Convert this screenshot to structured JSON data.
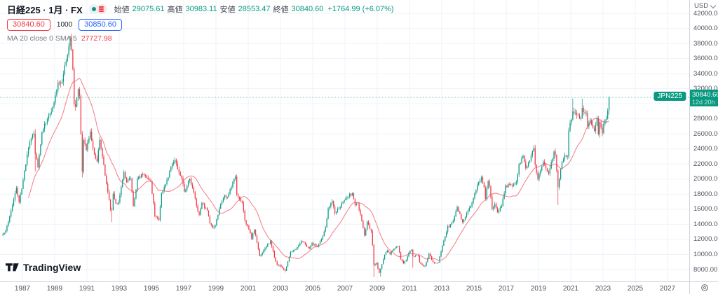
{
  "header": {
    "title": "日経225 · 1月 · FX",
    "status_icons": [
      "market-status-dot",
      "alert-menu"
    ],
    "ohlc": {
      "open_label": "始値",
      "open": "29075.61",
      "high_label": "高値",
      "high": "30983.11",
      "low_label": "安値",
      "low": "28553.47",
      "close_label": "終値",
      "close": "30840.60",
      "change": "+1764.99 (+6.07%)"
    }
  },
  "trade_panel": {
    "sell_price": "30840.60",
    "quantity": "1000",
    "buy_price": "30850.60"
  },
  "ma_legend": {
    "label": "MA 20 close 0 SMA 5",
    "value": "27727.98"
  },
  "price_axis": {
    "currency": "USD",
    "price_tag": {
      "price": "30840.60",
      "countdown": "12d 20h"
    }
  },
  "symbol_badge": "JPN225",
  "logo_text": "TradingView",
  "colors": {
    "up": "#089981",
    "down": "#F23645",
    "buy": "#2962FF",
    "sell": "#F23645",
    "ma_line": "#F23645",
    "grid": "#EEF3FA",
    "axis_border": "#D1D4DC",
    "axis_text": "#50535E",
    "current_price_line": "#089981"
  },
  "chart_data": {
    "type": "candlestick",
    "symbol": "JPN225 (日経225)",
    "timeframe": "1月 (monthly)",
    "legend": "MA 20 close 0 SMA 5",
    "ma_period": 20,
    "ma_last_value": 27727.98,
    "current_price": 30840.6,
    "last_candle": {
      "open": 29075.61,
      "high": 30983.11,
      "low": 28553.47,
      "close": 30840.6
    },
    "ylim": [
      6400,
      43800
    ],
    "price_gridlines": [
      8000,
      10000,
      12000,
      14000,
      16000,
      18000,
      20000,
      22000,
      24000,
      26000,
      28000,
      30000,
      32000,
      34000,
      36000,
      38000,
      40000,
      42000
    ],
    "year_gridlines": [
      1987,
      1989,
      1991,
      1993,
      1995,
      1997,
      1999,
      2001,
      2003,
      2005,
      2007,
      2009,
      2011,
      2013,
      2015,
      2017,
      2019,
      2021,
      2023,
      2025,
      2027
    ],
    "monthly_close_anchors": [
      [
        1985,
        10,
        12700
      ],
      [
        1985,
        12,
        13113
      ],
      [
        1986,
        4,
        15826
      ],
      [
        1986,
        8,
        18821
      ],
      [
        1986,
        10,
        16911
      ],
      [
        1986,
        12,
        18701
      ],
      [
        1987,
        4,
        23275
      ],
      [
        1987,
        6,
        24902
      ],
      [
        1987,
        9,
        26010
      ],
      [
        1987,
        10,
        23328,
        26646,
        21036
      ],
      [
        1987,
        12,
        21564
      ],
      [
        1988,
        3,
        26260
      ],
      [
        1988,
        7,
        27940
      ],
      [
        1988,
        11,
        29579
      ],
      [
        1988,
        12,
        30159
      ],
      [
        1989,
        3,
        32839
      ],
      [
        1989,
        6,
        32949
      ],
      [
        1989,
        9,
        35637
      ],
      [
        1989,
        12,
        38916,
        38957,
        null
      ],
      [
        1990,
        1,
        37189
      ],
      [
        1990,
        2,
        34592
      ],
      [
        1990,
        3,
        29980
      ],
      [
        1990,
        4,
        29585
      ],
      [
        1990,
        6,
        31940
      ],
      [
        1990,
        7,
        31035
      ],
      [
        1990,
        8,
        25978
      ],
      [
        1990,
        9,
        20984,
        null,
        20222
      ],
      [
        1990,
        10,
        25194
      ],
      [
        1990,
        12,
        23849
      ],
      [
        1991,
        3,
        26292
      ],
      [
        1991,
        6,
        23291
      ],
      [
        1991,
        8,
        22336
      ],
      [
        1991,
        10,
        25222
      ],
      [
        1991,
        12,
        22984
      ],
      [
        1992,
        3,
        19346
      ],
      [
        1992,
        6,
        15952
      ],
      [
        1992,
        7,
        15910,
        null,
        14309
      ],
      [
        1992,
        8,
        18061
      ],
      [
        1992,
        10,
        16767
      ],
      [
        1992,
        12,
        16925
      ],
      [
        1993,
        4,
        20919
      ],
      [
        1993,
        6,
        19590
      ],
      [
        1993,
        9,
        20106
      ],
      [
        1993,
        11,
        16406
      ],
      [
        1993,
        12,
        17417
      ],
      [
        1994,
        2,
        19997
      ],
      [
        1994,
        6,
        20644
      ],
      [
        1994,
        10,
        19990
      ],
      [
        1994,
        12,
        19723
      ],
      [
        1995,
        3,
        15140
      ],
      [
        1995,
        6,
        14517
      ],
      [
        1995,
        8,
        18117
      ],
      [
        1995,
        12,
        19868
      ],
      [
        1996,
        4,
        22041
      ],
      [
        1996,
        6,
        22531
      ],
      [
        1996,
        10,
        20467
      ],
      [
        1996,
        12,
        19361
      ],
      [
        1997,
        1,
        18330
      ],
      [
        1997,
        5,
        20069
      ],
      [
        1997,
        8,
        18229
      ],
      [
        1997,
        10,
        16459
      ],
      [
        1997,
        12,
        15259
      ],
      [
        1998,
        2,
        16831
      ],
      [
        1998,
        6,
        15830
      ],
      [
        1998,
        8,
        14108
      ],
      [
        1998,
        10,
        13565
      ],
      [
        1998,
        12,
        13842
      ],
      [
        1999,
        4,
        16702
      ],
      [
        1999,
        7,
        17861
      ],
      [
        1999,
        9,
        17606
      ],
      [
        1999,
        12,
        18934
      ],
      [
        2000,
        3,
        20337
      ],
      [
        2000,
        4,
        17974
      ],
      [
        2000,
        6,
        17411
      ],
      [
        2000,
        8,
        16861
      ],
      [
        2000,
        10,
        14540
      ],
      [
        2000,
        12,
        13786
      ],
      [
        2001,
        3,
        12100
      ],
      [
        2001,
        5,
        13262
      ],
      [
        2001,
        8,
        10714
      ],
      [
        2001,
        9,
        9775
      ],
      [
        2001,
        12,
        10543
      ],
      [
        2002,
        5,
        11764
      ],
      [
        2002,
        8,
        9619
      ],
      [
        2002,
        10,
        8640
      ],
      [
        2002,
        12,
        8579
      ],
      [
        2003,
        3,
        7973
      ],
      [
        2003,
        4,
        7831,
        null,
        7603
      ],
      [
        2003,
        6,
        9083
      ],
      [
        2003,
        8,
        10343
      ],
      [
        2003,
        10,
        10559
      ],
      [
        2003,
        12,
        10677
      ],
      [
        2004,
        4,
        11762
      ],
      [
        2004,
        7,
        11326
      ],
      [
        2004,
        10,
        10772
      ],
      [
        2004,
        12,
        11489
      ],
      [
        2005,
        4,
        11009
      ],
      [
        2005,
        8,
        12414
      ],
      [
        2005,
        10,
        13606
      ],
      [
        2005,
        12,
        16111
      ],
      [
        2006,
        3,
        17060
      ],
      [
        2006,
        5,
        15468
      ],
      [
        2006,
        8,
        16141
      ],
      [
        2006,
        12,
        17226
      ],
      [
        2007,
        2,
        17604
      ],
      [
        2007,
        6,
        18138
      ],
      [
        2007,
        8,
        16569
      ],
      [
        2007,
        10,
        16738
      ],
      [
        2007,
        12,
        15308
      ],
      [
        2008,
        3,
        12526
      ],
      [
        2008,
        5,
        14339
      ],
      [
        2008,
        8,
        13073
      ],
      [
        2008,
        9,
        11260
      ],
      [
        2008,
        10,
        8577,
        null,
        6995
      ],
      [
        2008,
        12,
        8860
      ],
      [
        2009,
        2,
        7568
      ],
      [
        2009,
        3,
        8110,
        null,
        7055
      ],
      [
        2009,
        6,
        9958
      ],
      [
        2009,
        8,
        10493
      ],
      [
        2009,
        10,
        10035
      ],
      [
        2009,
        12,
        10546
      ],
      [
        2010,
        4,
        11057
      ],
      [
        2010,
        6,
        9383
      ],
      [
        2010,
        8,
        8824
      ],
      [
        2010,
        10,
        9202
      ],
      [
        2010,
        12,
        10229
      ],
      [
        2011,
        2,
        10624
      ],
      [
        2011,
        3,
        9755,
        null,
        8227
      ],
      [
        2011,
        7,
        9833
      ],
      [
        2011,
        8,
        8955
      ],
      [
        2011,
        11,
        8435
      ],
      [
        2011,
        12,
        8455
      ],
      [
        2012,
        3,
        10084
      ],
      [
        2012,
        6,
        9007
      ],
      [
        2012,
        9,
        8870
      ],
      [
        2012,
        10,
        8928
      ],
      [
        2012,
        12,
        10395
      ],
      [
        2013,
        3,
        12398
      ],
      [
        2013,
        5,
        13775
      ],
      [
        2013,
        6,
        13677
      ],
      [
        2013,
        9,
        14456
      ],
      [
        2013,
        12,
        16291
      ],
      [
        2014,
        4,
        14304
      ],
      [
        2014,
        9,
        16174
      ],
      [
        2014,
        10,
        16414
      ],
      [
        2014,
        12,
        17451
      ],
      [
        2015,
        3,
        19207
      ],
      [
        2015,
        6,
        20236
      ],
      [
        2015,
        8,
        18890
      ],
      [
        2015,
        9,
        17388
      ],
      [
        2015,
        11,
        19747
      ],
      [
        2015,
        12,
        19034
      ],
      [
        2016,
        2,
        16027
      ],
      [
        2016,
        4,
        16666
      ],
      [
        2016,
        6,
        15576
      ],
      [
        2016,
        9,
        16450
      ],
      [
        2016,
        12,
        19114
      ],
      [
        2017,
        4,
        19197
      ],
      [
        2017,
        8,
        19646
      ],
      [
        2017,
        10,
        22012
      ],
      [
        2017,
        12,
        22765
      ],
      [
        2018,
        1,
        23098
      ],
      [
        2018,
        3,
        21454
      ],
      [
        2018,
        5,
        22202
      ],
      [
        2018,
        9,
        24120
      ],
      [
        2018,
        10,
        21920
      ],
      [
        2018,
        12,
        20015
      ],
      [
        2019,
        4,
        22259
      ],
      [
        2019,
        8,
        20704
      ],
      [
        2019,
        12,
        23657
      ],
      [
        2020,
        1,
        23205
      ],
      [
        2020,
        2,
        21143
      ],
      [
        2020,
        3,
        18917,
        null,
        16553
      ],
      [
        2020,
        6,
        22288
      ],
      [
        2020,
        8,
        23140
      ],
      [
        2020,
        10,
        22977
      ],
      [
        2020,
        11,
        26434
      ],
      [
        2020,
        12,
        27444
      ],
      [
        2021,
        2,
        28966,
        30714,
        null
      ],
      [
        2021,
        4,
        28813
      ],
      [
        2021,
        8,
        28090
      ],
      [
        2021,
        9,
        29453,
        30670,
        null
      ],
      [
        2021,
        10,
        28893
      ],
      [
        2021,
        12,
        28792
      ],
      [
        2022,
        1,
        27002
      ],
      [
        2022,
        3,
        27821
      ],
      [
        2022,
        6,
        26393
      ],
      [
        2022,
        8,
        28092
      ],
      [
        2022,
        9,
        25937
      ],
      [
        2022,
        10,
        27587
      ],
      [
        2022,
        12,
        26095
      ],
      [
        2023,
        1,
        27327
      ],
      [
        2023,
        3,
        28041
      ],
      [
        2023,
        4,
        29075.61
      ],
      [
        2023,
        5,
        30840.6,
        30983.11,
        28553.47
      ]
    ]
  }
}
